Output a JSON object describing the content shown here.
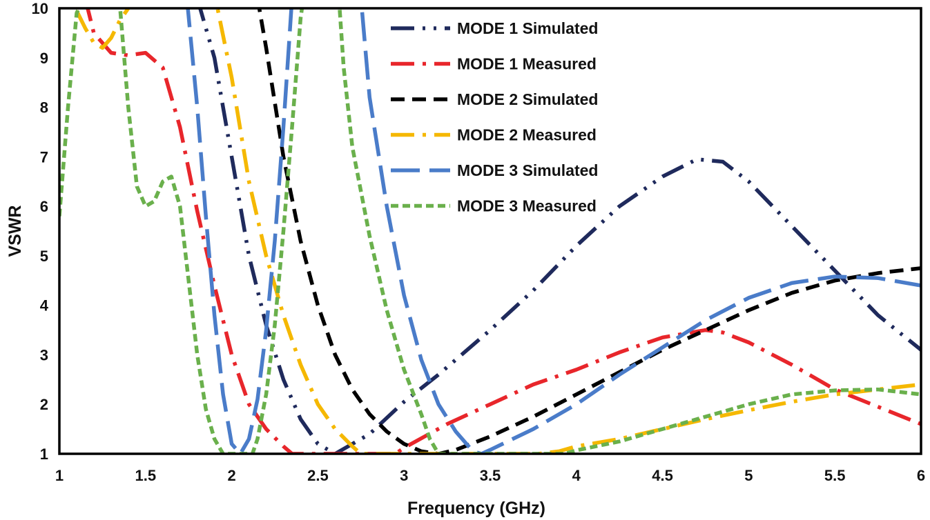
{
  "chart_data": {
    "type": "line",
    "title": "",
    "xlabel": "Frequency (GHz)",
    "ylabel": "VSWR",
    "xlim": [
      1,
      6
    ],
    "ylim": [
      1,
      10
    ],
    "xticks": [
      1,
      1.5,
      2,
      2.5,
      3,
      3.5,
      4,
      4.5,
      5,
      5.5,
      6
    ],
    "xtick_labels": [
      "1",
      "1.5",
      "2",
      "2.5",
      "3",
      "3.5",
      "4",
      "4.5",
      "5",
      "5.5",
      "6"
    ],
    "yticks": [
      1,
      2,
      3,
      4,
      5,
      6,
      7,
      8,
      9,
      10
    ],
    "ytick_labels": [
      "1",
      "2",
      "3",
      "4",
      "5",
      "6",
      "7",
      "8",
      "9",
      "10"
    ],
    "grid": false,
    "legend_position": "top-center",
    "series": [
      {
        "name": "MODE 1 Simulated",
        "color": "#1f2a5c",
        "dash": "dash-dot-dot",
        "points": [
          [
            1.8,
            10.2
          ],
          [
            1.9,
            9.0
          ],
          [
            2.0,
            7.0
          ],
          [
            2.1,
            5.0
          ],
          [
            2.2,
            3.6
          ],
          [
            2.3,
            2.5
          ],
          [
            2.4,
            1.7
          ],
          [
            2.5,
            1.2
          ],
          [
            2.6,
            1.0
          ],
          [
            2.8,
            1.4
          ],
          [
            3.0,
            2.05
          ],
          [
            3.2,
            2.6
          ],
          [
            3.5,
            3.5
          ],
          [
            3.75,
            4.3
          ],
          [
            4.0,
            5.2
          ],
          [
            4.25,
            6.0
          ],
          [
            4.5,
            6.6
          ],
          [
            4.7,
            6.95
          ],
          [
            4.85,
            6.9
          ],
          [
            5.0,
            6.5
          ],
          [
            5.25,
            5.6
          ],
          [
            5.5,
            4.7
          ],
          [
            5.75,
            3.8
          ],
          [
            6.0,
            3.1
          ]
        ]
      },
      {
        "name": "MODE 1 Measured",
        "color": "#e8262b",
        "dash": "dash-dot",
        "points": [
          [
            1.15,
            10.2
          ],
          [
            1.2,
            9.5
          ],
          [
            1.3,
            9.1
          ],
          [
            1.4,
            9.05
          ],
          [
            1.5,
            9.1
          ],
          [
            1.6,
            8.8
          ],
          [
            1.7,
            7.6
          ],
          [
            1.8,
            5.9
          ],
          [
            1.9,
            4.4
          ],
          [
            2.0,
            3.0
          ],
          [
            2.1,
            2.0
          ],
          [
            2.2,
            1.5
          ],
          [
            2.3,
            1.15
          ],
          [
            2.35,
            1.0
          ],
          [
            2.95,
            1.0
          ],
          [
            3.0,
            1.12
          ],
          [
            3.25,
            1.6
          ],
          [
            3.5,
            2.0
          ],
          [
            3.75,
            2.4
          ],
          [
            4.0,
            2.7
          ],
          [
            4.25,
            3.05
          ],
          [
            4.5,
            3.35
          ],
          [
            4.75,
            3.5
          ],
          [
            4.85,
            3.45
          ],
          [
            5.0,
            3.25
          ],
          [
            5.25,
            2.8
          ],
          [
            5.5,
            2.3
          ],
          [
            5.75,
            1.95
          ],
          [
            6.0,
            1.6
          ]
        ]
      },
      {
        "name": "MODE 2 Simulated",
        "color": "#000000",
        "dash": "dash",
        "points": [
          [
            2.15,
            10.2
          ],
          [
            2.2,
            9.2
          ],
          [
            2.3,
            7.0
          ],
          [
            2.4,
            5.3
          ],
          [
            2.5,
            4.0
          ],
          [
            2.6,
            3.0
          ],
          [
            2.7,
            2.3
          ],
          [
            2.8,
            1.8
          ],
          [
            2.9,
            1.45
          ],
          [
            3.0,
            1.2
          ],
          [
            3.1,
            1.05
          ],
          [
            3.2,
            1.0
          ],
          [
            3.3,
            1.08
          ],
          [
            3.5,
            1.35
          ],
          [
            3.75,
            1.75
          ],
          [
            4.0,
            2.2
          ],
          [
            4.25,
            2.65
          ],
          [
            4.5,
            3.1
          ],
          [
            4.75,
            3.5
          ],
          [
            5.0,
            3.9
          ],
          [
            5.25,
            4.25
          ],
          [
            5.5,
            4.5
          ],
          [
            5.75,
            4.65
          ],
          [
            6.0,
            4.75
          ]
        ]
      },
      {
        "name": "MODE 2 Measured",
        "color": "#f5b800",
        "dash": "dash-dot",
        "points": [
          [
            1.1,
            9.95
          ],
          [
            1.15,
            9.6
          ],
          [
            1.2,
            9.3
          ],
          [
            1.25,
            9.2
          ],
          [
            1.3,
            9.4
          ],
          [
            1.35,
            9.75
          ],
          [
            1.4,
            10.0
          ],
          [
            1.5,
            10.4
          ],
          [
            1.9,
            10.3
          ],
          [
            2.0,
            8.6
          ],
          [
            2.1,
            6.5
          ],
          [
            2.2,
            5.0
          ],
          [
            2.3,
            3.8
          ],
          [
            2.4,
            2.8
          ],
          [
            2.5,
            2.0
          ],
          [
            2.6,
            1.5
          ],
          [
            2.7,
            1.15
          ],
          [
            2.75,
            1.0
          ],
          [
            3.78,
            1.0
          ],
          [
            3.9,
            1.05
          ],
          [
            4.0,
            1.15
          ],
          [
            4.25,
            1.3
          ],
          [
            4.5,
            1.5
          ],
          [
            4.75,
            1.7
          ],
          [
            5.0,
            1.88
          ],
          [
            5.25,
            2.05
          ],
          [
            5.5,
            2.2
          ],
          [
            5.75,
            2.3
          ],
          [
            6.0,
            2.4
          ]
        ]
      },
      {
        "name": "MODE 3 Simulated",
        "color": "#4a7cc9",
        "dash": "long-dash",
        "points": [
          [
            1.74,
            10.2
          ],
          [
            1.8,
            8.0
          ],
          [
            1.85,
            5.8
          ],
          [
            1.9,
            3.8
          ],
          [
            1.95,
            2.2
          ],
          [
            2.0,
            1.2
          ],
          [
            2.05,
            1.0
          ],
          [
            2.1,
            1.3
          ],
          [
            2.15,
            2.1
          ],
          [
            2.2,
            3.5
          ],
          [
            2.25,
            5.3
          ],
          [
            2.3,
            7.6
          ],
          [
            2.35,
            10.2
          ],
          [
            2.75,
            10.2
          ],
          [
            2.8,
            8.2
          ],
          [
            2.9,
            6.0
          ],
          [
            3.0,
            4.2
          ],
          [
            3.1,
            2.9
          ],
          [
            3.2,
            2.0
          ],
          [
            3.3,
            1.45
          ],
          [
            3.4,
            1.05
          ],
          [
            3.45,
            1.0
          ],
          [
            3.5,
            1.08
          ],
          [
            3.75,
            1.5
          ],
          [
            4.0,
            2.0
          ],
          [
            4.25,
            2.6
          ],
          [
            4.5,
            3.15
          ],
          [
            4.75,
            3.7
          ],
          [
            5.0,
            4.15
          ],
          [
            5.25,
            4.45
          ],
          [
            5.5,
            4.58
          ],
          [
            5.75,
            4.55
          ],
          [
            6.0,
            4.4
          ]
        ]
      },
      {
        "name": "MODE 3 Measured",
        "color": "#6ab04c",
        "dash": "short-dash",
        "points": [
          [
            1.0,
            5.8
          ],
          [
            1.05,
            8.0
          ],
          [
            1.1,
            9.9
          ],
          [
            1.15,
            10.3
          ],
          [
            1.25,
            10.2
          ],
          [
            1.3,
            10.2
          ],
          [
            1.35,
            10.1
          ],
          [
            1.4,
            8.0
          ],
          [
            1.45,
            6.4
          ],
          [
            1.5,
            6.0
          ],
          [
            1.55,
            6.1
          ],
          [
            1.6,
            6.5
          ],
          [
            1.65,
            6.6
          ],
          [
            1.7,
            6.0
          ],
          [
            1.75,
            4.5
          ],
          [
            1.8,
            3.0
          ],
          [
            1.85,
            1.9
          ],
          [
            1.9,
            1.3
          ],
          [
            1.95,
            1.0
          ],
          [
            2.12,
            1.0
          ],
          [
            2.15,
            1.3
          ],
          [
            2.2,
            2.2
          ],
          [
            2.25,
            3.6
          ],
          [
            2.3,
            5.5
          ],
          [
            2.35,
            7.6
          ],
          [
            2.4,
            9.8
          ],
          [
            2.42,
            10.3
          ],
          [
            2.62,
            10.3
          ],
          [
            2.65,
            8.8
          ],
          [
            2.7,
            7.2
          ],
          [
            2.8,
            5.4
          ],
          [
            2.9,
            3.9
          ],
          [
            3.0,
            2.7
          ],
          [
            3.1,
            1.8
          ],
          [
            3.15,
            1.3
          ],
          [
            3.2,
            1.0
          ],
          [
            3.93,
            1.0
          ],
          [
            4.0,
            1.07
          ],
          [
            4.25,
            1.25
          ],
          [
            4.5,
            1.5
          ],
          [
            4.75,
            1.75
          ],
          [
            5.0,
            2.0
          ],
          [
            5.25,
            2.2
          ],
          [
            5.5,
            2.28
          ],
          [
            5.75,
            2.3
          ],
          [
            6.0,
            2.2
          ]
        ]
      }
    ]
  }
}
